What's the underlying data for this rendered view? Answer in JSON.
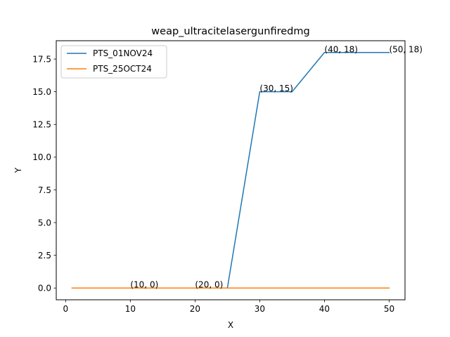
{
  "chart_data": {
    "type": "line",
    "title": "weap_ultracitelasergunfiredmg",
    "xlabel": "X",
    "ylabel": "Y",
    "xlim": [
      -1.45,
      52.45
    ],
    "ylim": [
      -0.9,
      18.9
    ],
    "xticks": [
      0,
      10,
      20,
      30,
      40,
      50
    ],
    "xtick_labels": [
      "0",
      "10",
      "20",
      "30",
      "40",
      "50"
    ],
    "yticks": [
      0,
      2.5,
      5,
      7.5,
      10,
      12.5,
      15,
      17.5
    ],
    "ytick_labels": [
      "0.0",
      "2.5",
      "5.0",
      "7.5",
      "10.0",
      "12.5",
      "15.0",
      "17.5"
    ],
    "grid": false,
    "legend_position": "top-left",
    "series": [
      {
        "name": "PTS_01NOV24",
        "color": "#1f77b4",
        "x": [
          1,
          25,
          30,
          35,
          40,
          50
        ],
        "y": [
          0,
          0,
          15,
          15,
          18,
          18
        ]
      },
      {
        "name": "PTS_25OCT24",
        "color": "#ff7f0e",
        "x": [
          1,
          50
        ],
        "y": [
          0,
          0
        ]
      }
    ],
    "annotations": [
      {
        "text": "(10, 0)",
        "x": 10,
        "y": 0
      },
      {
        "text": "(20, 0)",
        "x": 20,
        "y": 0
      },
      {
        "text": "(30, 15)",
        "x": 30,
        "y": 15
      },
      {
        "text": "(40, 18)",
        "x": 40,
        "y": 18
      },
      {
        "text": "(50, 18)",
        "x": 50,
        "y": 18
      }
    ]
  }
}
